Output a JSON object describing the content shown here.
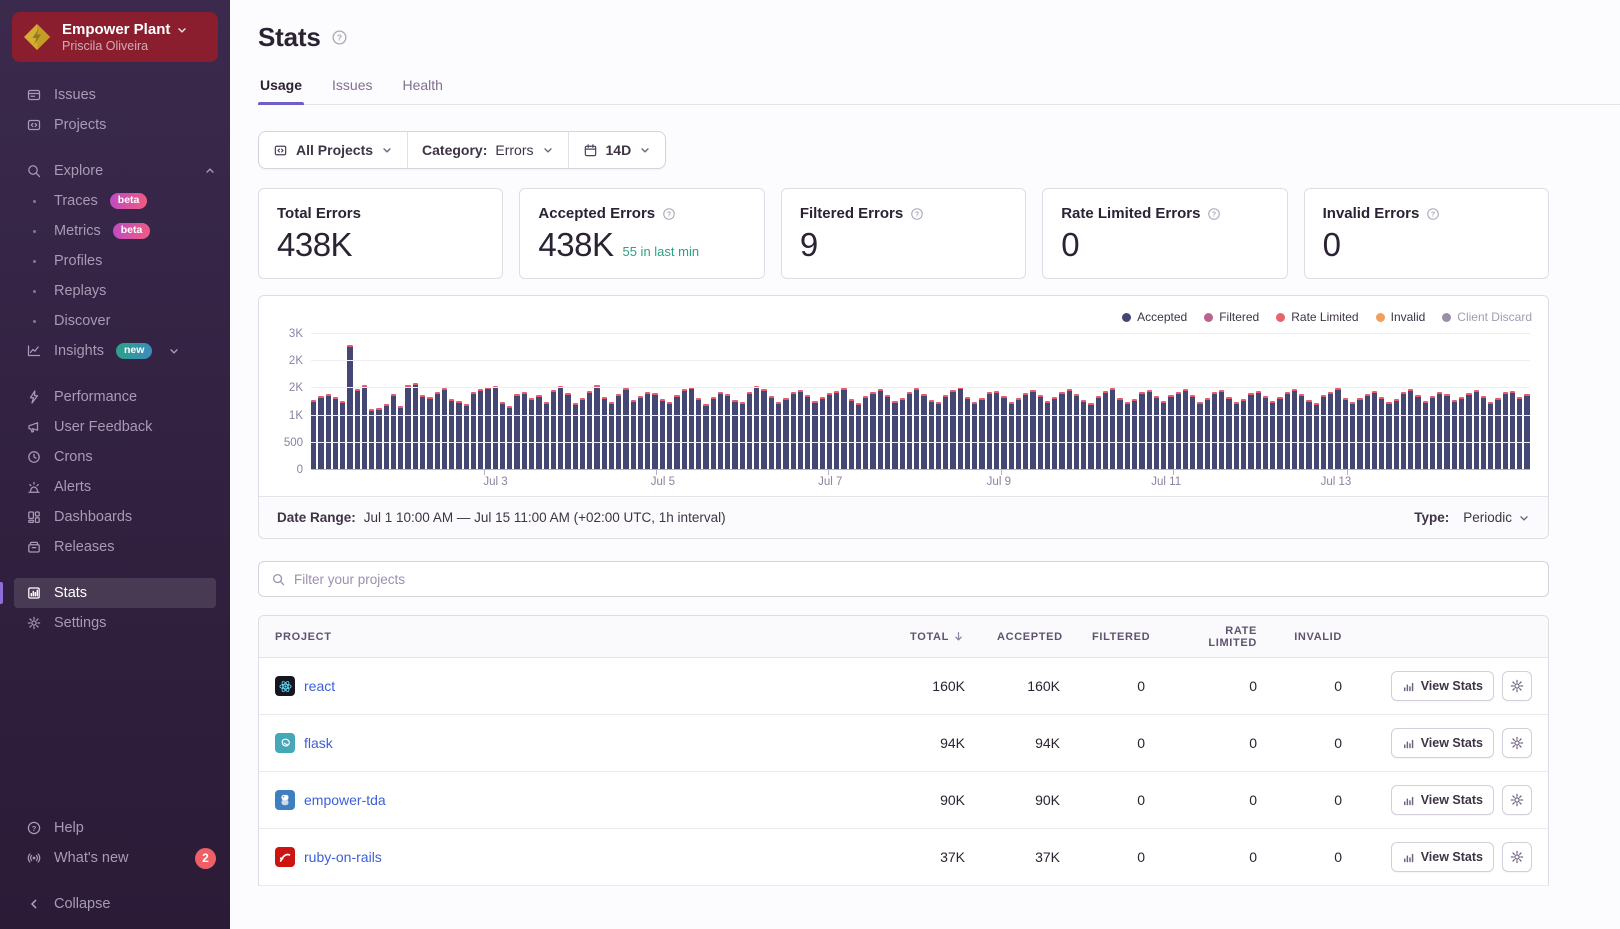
{
  "colors": {
    "accent_purple": "#6c5fc7",
    "link_blue": "#3e60d6",
    "bar_accepted": "#444674",
    "bar_filtered_cap": "#e9596b",
    "teal_live": "#2ba185",
    "org_card_red": "#8a1e2e",
    "badge_beta": "#d84d9e",
    "badge_new": "#2ba185",
    "notification_red": "#ef6066"
  },
  "sidebar": {
    "org": {
      "name": "Empower Plant",
      "user": "Priscila Oliveira"
    },
    "primary": [
      {
        "label": "Issues",
        "icon": "issues-icon"
      },
      {
        "label": "Projects",
        "icon": "projects-icon"
      }
    ],
    "explore": {
      "label": "Explore",
      "icon": "search-icon",
      "items": [
        {
          "label": "Traces",
          "badge": "beta"
        },
        {
          "label": "Metrics",
          "badge": "beta"
        },
        {
          "label": "Profiles"
        },
        {
          "label": "Replays"
        },
        {
          "label": "Discover"
        }
      ]
    },
    "insights": {
      "label": "Insights",
      "icon": "insights-icon",
      "badge": "new"
    },
    "secondary": [
      {
        "label": "Performance",
        "icon": "performance-icon"
      },
      {
        "label": "User Feedback",
        "icon": "user-feedback-icon"
      },
      {
        "label": "Crons",
        "icon": "crons-icon"
      },
      {
        "label": "Alerts",
        "icon": "alerts-icon"
      },
      {
        "label": "Dashboards",
        "icon": "dashboards-icon"
      },
      {
        "label": "Releases",
        "icon": "releases-icon"
      }
    ],
    "tertiary": [
      {
        "label": "Stats",
        "icon": "stats-icon",
        "active": true
      },
      {
        "label": "Settings",
        "icon": "gear-icon"
      }
    ],
    "footer": [
      {
        "label": "Help",
        "icon": "help-icon"
      },
      {
        "label": "What's new",
        "icon": "broadcast-icon",
        "badge_count": "2"
      },
      {
        "label": "Collapse",
        "icon": "collapse-icon",
        "gap_before": true
      }
    ]
  },
  "header": {
    "title": "Stats",
    "tabs": [
      {
        "label": "Usage",
        "active": true
      },
      {
        "label": "Issues",
        "active": false
      },
      {
        "label": "Health",
        "active": false
      }
    ]
  },
  "filters": {
    "projects": "All Projects",
    "category_label": "Category:",
    "category_value": "Errors",
    "range": "14D"
  },
  "cards": [
    {
      "title": "Total Errors",
      "value": "438K",
      "help": false,
      "sub": ""
    },
    {
      "title": "Accepted Errors",
      "value": "438K",
      "help": true,
      "sub": "55 in last min"
    },
    {
      "title": "Filtered Errors",
      "value": "9",
      "help": true,
      "sub": ""
    },
    {
      "title": "Rate Limited Errors",
      "value": "0",
      "help": true,
      "sub": ""
    },
    {
      "title": "Invalid Errors",
      "value": "0",
      "help": true,
      "sub": ""
    }
  ],
  "chart_data": {
    "type": "bar",
    "title": "Errors per hour (stacked: accepted + filtered cap)",
    "y_max": 3000,
    "y_axis_labels_bottom_up": [
      "0",
      "500",
      "1K",
      "2K",
      "2K",
      "3K"
    ],
    "x_axis_labels": [
      "Jul 3",
      "Jul 5",
      "Jul 7",
      "Jul 9",
      "Jul 11",
      "Jul 13"
    ],
    "x_label_positions_pct": [
      14.2,
      28.3,
      42.4,
      56.6,
      70.7,
      85.0
    ],
    "legend": [
      {
        "label": "Accepted",
        "color": "#444674",
        "enabled": true
      },
      {
        "label": "Filtered",
        "color": "#b9648f",
        "enabled": true
      },
      {
        "label": "Rate Limited",
        "color": "#e9626e",
        "enabled": true
      },
      {
        "label": "Invalid",
        "color": "#f0a05a",
        "enabled": true
      },
      {
        "label": "Client Discard",
        "color": "#9a8fa8",
        "enabled": false
      }
    ],
    "filtered_cap_per_bar": 30,
    "series": [
      {
        "name": "Accepted",
        "values": [
          1520,
          1610,
          1655,
          1580,
          1500,
          2720,
          1760,
          1850,
          1320,
          1340,
          1430,
          1650,
          1380,
          1840,
          1900,
          1620,
          1580,
          1700,
          1770,
          1540,
          1500,
          1420,
          1680,
          1750,
          1800,
          1830,
          1460,
          1380,
          1650,
          1700,
          1560,
          1620,
          1480,
          1740,
          1820,
          1660,
          1440,
          1560,
          1720,
          1840,
          1580,
          1460,
          1640,
          1780,
          1520,
          1600,
          1700,
          1660,
          1540,
          1480,
          1620,
          1760,
          1810,
          1560,
          1420,
          1580,
          1700,
          1640,
          1520,
          1460,
          1700,
          1820,
          1760,
          1600,
          1480,
          1560,
          1680,
          1740,
          1620,
          1500,
          1580,
          1660,
          1720,
          1780,
          1540,
          1440,
          1600,
          1680,
          1760,
          1620,
          1500,
          1560,
          1700,
          1780,
          1640,
          1520,
          1460,
          1620,
          1740,
          1800,
          1580,
          1480,
          1560,
          1680,
          1720,
          1600,
          1480,
          1560,
          1660,
          1740,
          1620,
          1500,
          1580,
          1700,
          1760,
          1640,
          1520,
          1440,
          1600,
          1720,
          1780,
          1560,
          1460,
          1540,
          1680,
          1740,
          1600,
          1500,
          1620,
          1700,
          1760,
          1620,
          1480,
          1560,
          1700,
          1740,
          1580,
          1460,
          1540,
          1660,
          1720,
          1600,
          1500,
          1580,
          1680,
          1760,
          1640,
          1520,
          1440,
          1620,
          1700,
          1780,
          1560,
          1480,
          1560,
          1640,
          1720,
          1580,
          1460,
          1540,
          1680,
          1760,
          1620,
          1500,
          1600,
          1700,
          1640,
          1520,
          1580,
          1660,
          1740,
          1600,
          1480,
          1560,
          1680,
          1720,
          1590,
          1650
        ]
      }
    ]
  },
  "date_range": {
    "label": "Date Range:",
    "value": "Jul 1 10:00 AM — Jul 15 11:00 AM (+02:00 UTC, 1h interval)",
    "type_label": "Type:",
    "type_value": "Periodic"
  },
  "project_filter": {
    "placeholder": "Filter your projects"
  },
  "table": {
    "columns": [
      "PROJECT",
      "TOTAL",
      "ACCEPTED",
      "FILTERED",
      "RATE LIMITED",
      "INVALID"
    ],
    "sorted_by": "TOTAL",
    "view_stats_label": "View Stats",
    "rows": [
      {
        "project": "react",
        "platform": "react",
        "icon_bg": "#16161f",
        "total": "160K",
        "accepted": "160K",
        "filtered": "0",
        "rate_limited": "0",
        "invalid": "0"
      },
      {
        "project": "flask",
        "platform": "flask",
        "icon_bg": "#45a8b8",
        "total": "94K",
        "accepted": "94K",
        "filtered": "0",
        "rate_limited": "0",
        "invalid": "0"
      },
      {
        "project": "empower-tda",
        "platform": "python",
        "icon_bg": "#3f7fbf",
        "total": "90K",
        "accepted": "90K",
        "filtered": "0",
        "rate_limited": "0",
        "invalid": "0"
      },
      {
        "project": "ruby-on-rails",
        "platform": "rails",
        "icon_bg": "#cc1410",
        "total": "37K",
        "accepted": "37K",
        "filtered": "0",
        "rate_limited": "0",
        "invalid": "0"
      }
    ]
  }
}
